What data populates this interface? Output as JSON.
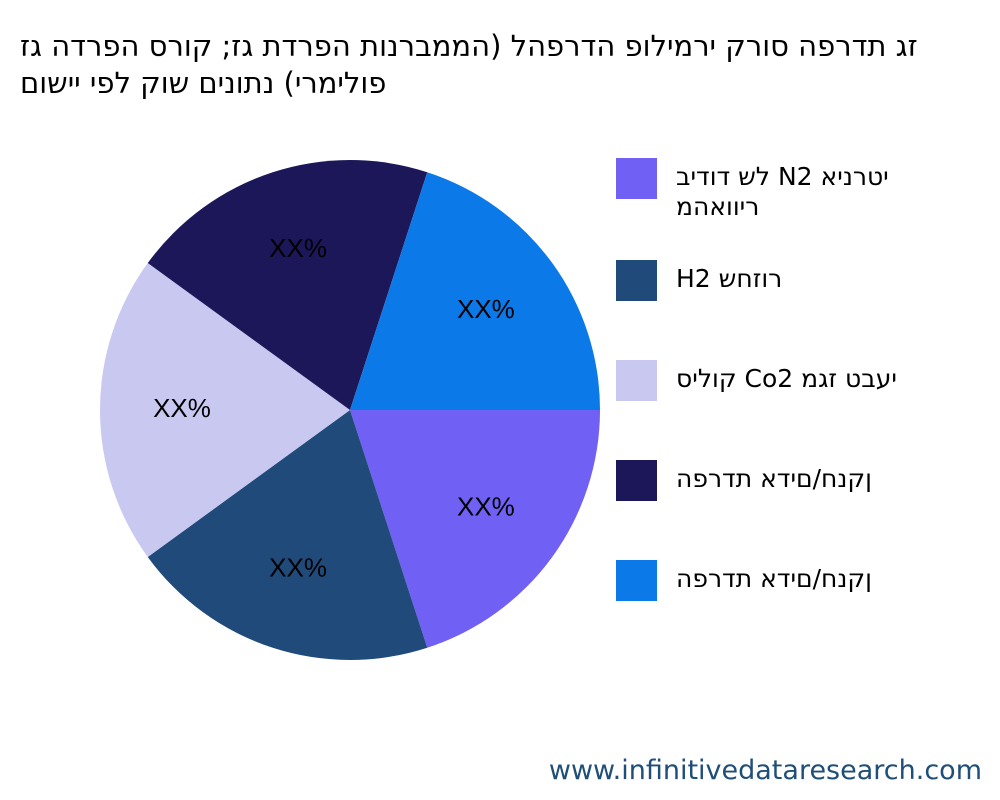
{
  "chart_data": {
    "type": "pie",
    "title": "זג תדרפה סורק ירמילופ הדרפהל (הממברנות הפרדת גז; קורס הפרדה גז) ןיתנות שוק לפי סוישי (פולימרי",
    "title_lines": [
      "זג תדרפה סורק ירמילופ הדרפהל (הממברנות הפרדת גז; קורס הפרדה גז",
      "פולימרי) נתונים שוק לפי יישום"
    ],
    "slices": [
      {
        "label": "יטרניא N2 לש דודיב ריוואהמ",
        "value": 20,
        "display_label": "XX%",
        "color": "#7060f3"
      },
      {
        "label": "רוזחש H2",
        "value": 20,
        "display_label": "XX%",
        "color": "#1f4a7a"
      },
      {
        "label": "יעבט זגמ Co2 קוליס",
        "value": 20,
        "display_label": "XX%",
        "color": "#c8c8f0"
      },
      {
        "label": "ןקנח/םידא תדרפה",
        "value": 20,
        "display_label": "XX%",
        "color": "#1c1758"
      },
      {
        "label": "ןקנח/םידא תדרפה",
        "value": 20,
        "display_label": "XX%",
        "color": "#0b79e8"
      }
    ],
    "legend_position": "right",
    "start_angle_deg": 0,
    "direction": "clockwise"
  },
  "footer": {
    "url": "www.infinitivedataresearch.com"
  }
}
